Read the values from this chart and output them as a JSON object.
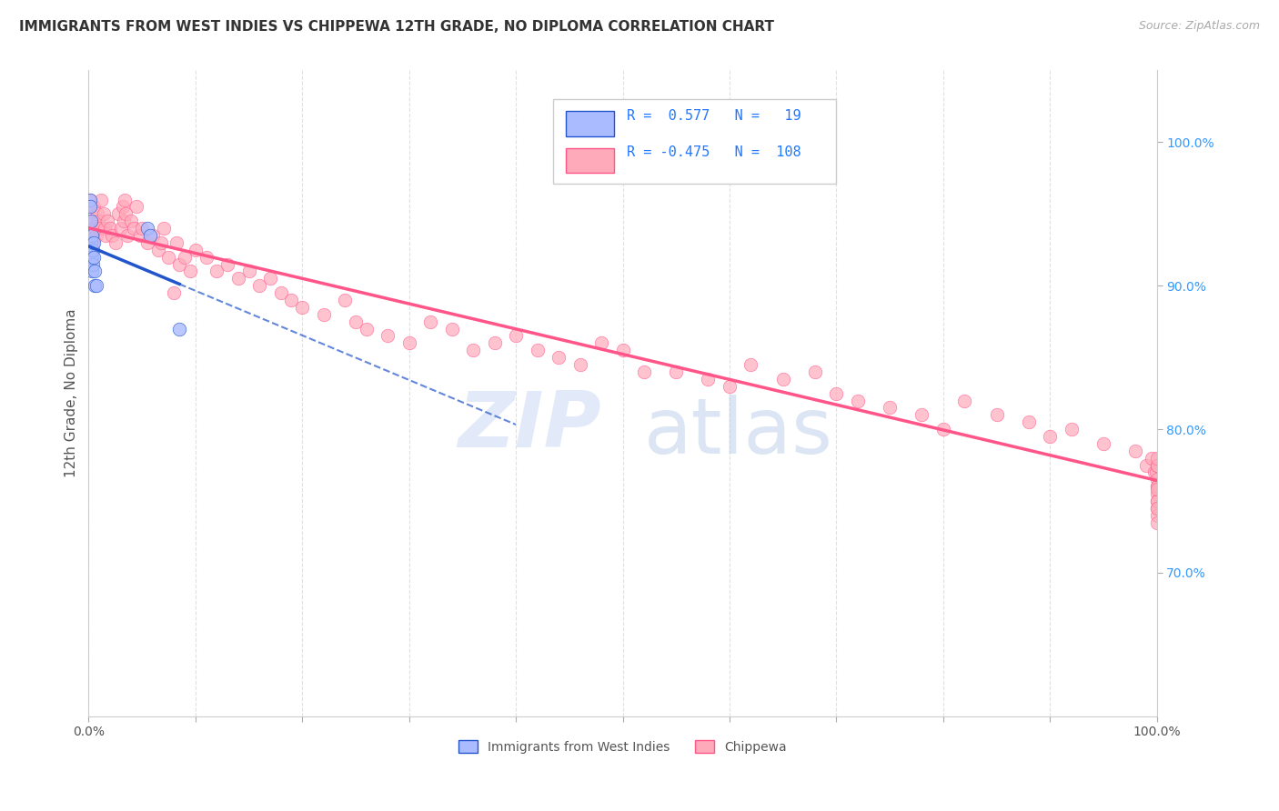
{
  "title": "IMMIGRANTS FROM WEST INDIES VS CHIPPEWA 12TH GRADE, NO DIPLOMA CORRELATION CHART",
  "source": "Source: ZipAtlas.com",
  "ylabel": "12th Grade, No Diploma",
  "xmin": 0.0,
  "xmax": 1.0,
  "ymin": 0.6,
  "ymax": 1.05,
  "right_yticks": [
    0.7,
    0.8,
    0.9,
    1.0
  ],
  "right_yticklabels": [
    "70.0%",
    "80.0%",
    "90.0%",
    "100.0%"
  ],
  "legend_r_blue": "0.577",
  "legend_n_blue": "19",
  "legend_r_pink": "-0.475",
  "legend_n_pink": "108",
  "blue_color": "#aabbff",
  "pink_color": "#ffaabb",
  "blue_line_color": "#2255cc",
  "pink_line_color": "#ff5588",
  "watermark_zip": "ZIP",
  "watermark_atlas": "atlas",
  "blue_scatter_x": [
    0.001,
    0.001,
    0.002,
    0.002,
    0.002,
    0.003,
    0.003,
    0.003,
    0.003,
    0.004,
    0.004,
    0.005,
    0.005,
    0.006,
    0.006,
    0.007,
    0.055,
    0.058,
    0.085
  ],
  "blue_scatter_y": [
    0.96,
    0.955,
    0.945,
    0.93,
    0.92,
    0.935,
    0.925,
    0.92,
    0.91,
    0.925,
    0.915,
    0.93,
    0.92,
    0.91,
    0.9,
    0.9,
    0.94,
    0.935,
    0.87
  ],
  "pink_scatter_x": [
    0.001,
    0.002,
    0.002,
    0.003,
    0.003,
    0.004,
    0.005,
    0.005,
    0.006,
    0.007,
    0.008,
    0.009,
    0.01,
    0.012,
    0.014,
    0.015,
    0.016,
    0.018,
    0.02,
    0.022,
    0.025,
    0.028,
    0.03,
    0.032,
    0.033,
    0.034,
    0.035,
    0.036,
    0.04,
    0.042,
    0.045,
    0.048,
    0.05,
    0.055,
    0.06,
    0.065,
    0.068,
    0.07,
    0.075,
    0.08,
    0.082,
    0.085,
    0.09,
    0.095,
    0.1,
    0.11,
    0.12,
    0.13,
    0.14,
    0.15,
    0.16,
    0.17,
    0.18,
    0.19,
    0.2,
    0.22,
    0.24,
    0.25,
    0.26,
    0.28,
    0.3,
    0.32,
    0.34,
    0.36,
    0.38,
    0.4,
    0.42,
    0.44,
    0.46,
    0.48,
    0.5,
    0.52,
    0.55,
    0.58,
    0.6,
    0.62,
    0.65,
    0.68,
    0.7,
    0.72,
    0.75,
    0.78,
    0.8,
    0.82,
    0.85,
    0.88,
    0.9,
    0.92,
    0.95,
    0.98,
    0.99,
    0.995,
    0.998,
    0.999,
    1.0,
    1.0,
    1.0,
    1.0,
    1.0,
    1.0,
    1.0,
    1.0,
    1.0,
    1.0,
    1.0,
    1.0,
    1.0,
    1.0
  ],
  "pink_scatter_y": [
    0.96,
    0.955,
    0.945,
    0.94,
    0.935,
    0.93,
    0.955,
    0.945,
    0.94,
    0.935,
    0.95,
    0.945,
    0.94,
    0.96,
    0.95,
    0.94,
    0.935,
    0.945,
    0.94,
    0.935,
    0.93,
    0.95,
    0.94,
    0.955,
    0.945,
    0.96,
    0.95,
    0.935,
    0.945,
    0.94,
    0.955,
    0.935,
    0.94,
    0.93,
    0.935,
    0.925,
    0.93,
    0.94,
    0.92,
    0.895,
    0.93,
    0.915,
    0.92,
    0.91,
    0.925,
    0.92,
    0.91,
    0.915,
    0.905,
    0.91,
    0.9,
    0.905,
    0.895,
    0.89,
    0.885,
    0.88,
    0.89,
    0.875,
    0.87,
    0.865,
    0.86,
    0.875,
    0.87,
    0.855,
    0.86,
    0.865,
    0.855,
    0.85,
    0.845,
    0.86,
    0.855,
    0.84,
    0.84,
    0.835,
    0.83,
    0.845,
    0.835,
    0.84,
    0.825,
    0.82,
    0.815,
    0.81,
    0.8,
    0.82,
    0.81,
    0.805,
    0.795,
    0.8,
    0.79,
    0.785,
    0.775,
    0.78,
    0.77,
    0.77,
    0.765,
    0.76,
    0.755,
    0.75,
    0.775,
    0.745,
    0.74,
    0.735,
    0.76,
    0.75,
    0.745,
    0.775,
    0.78,
    0.758
  ]
}
